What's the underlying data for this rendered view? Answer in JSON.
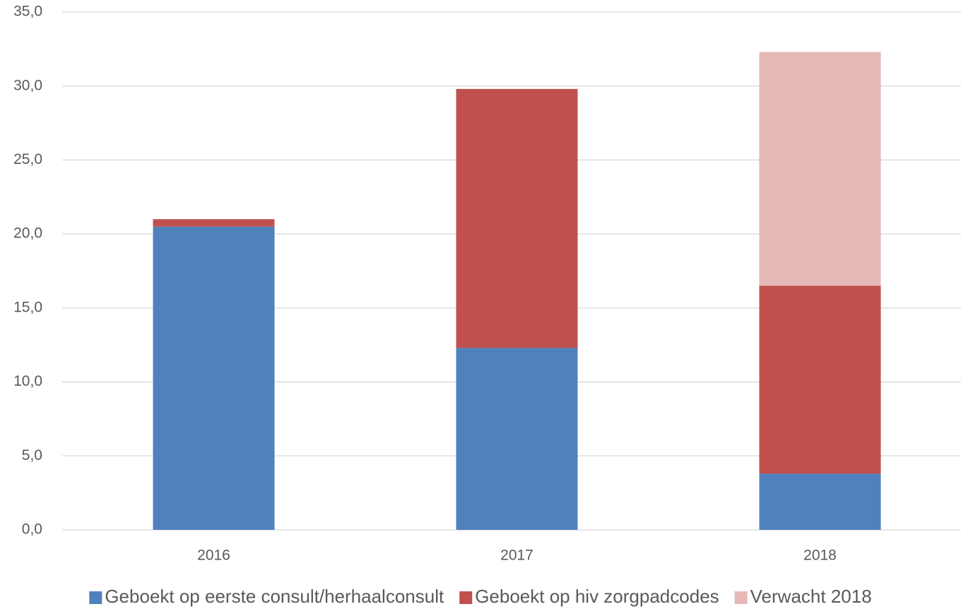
{
  "chart_data": {
    "type": "stacked-bar",
    "categories": [
      "2016",
      "2017",
      "2018"
    ],
    "series": [
      {
        "name": "Geboekt op eerste consult/herhaalconsult",
        "color": "#4f81bd",
        "values": [
          20.5,
          12.3,
          3.8
        ]
      },
      {
        "name": "Geboekt op hiv zorgpadcodes",
        "color": "#c0504d",
        "values": [
          0.5,
          17.5,
          12.7
        ]
      },
      {
        "name": "Verwacht 2018",
        "color": "#e6b9b8",
        "values": [
          null,
          null,
          15.8
        ]
      }
    ],
    "ylim": [
      0,
      35
    ],
    "yticks": [
      {
        "value": 0,
        "label": "0,0"
      },
      {
        "value": 5,
        "label": "5,0"
      },
      {
        "value": 10,
        "label": "10,0"
      },
      {
        "value": 15,
        "label": "15,0"
      },
      {
        "value": 20,
        "label": "20,0"
      },
      {
        "value": 25,
        "label": "25,0"
      },
      {
        "value": 30,
        "label": "30,0"
      },
      {
        "value": 35,
        "label": "35,0"
      }
    ],
    "grid": true,
    "legend": "bottom"
  }
}
